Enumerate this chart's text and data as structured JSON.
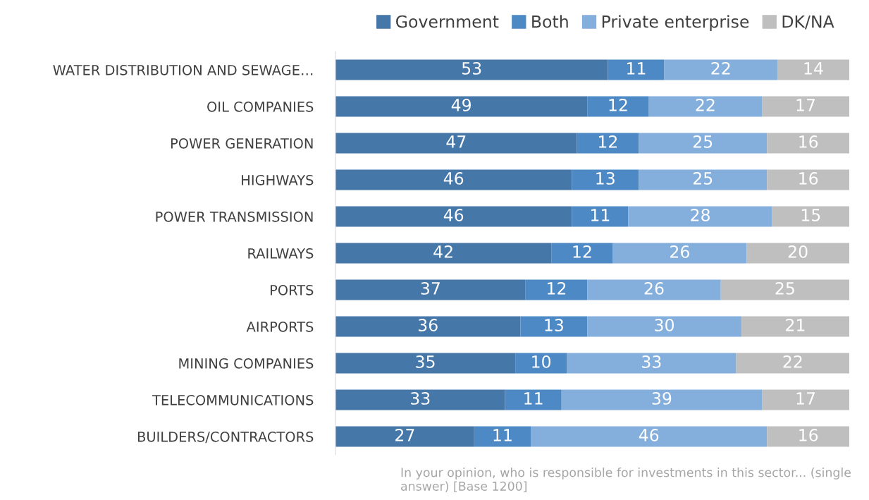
{
  "chart_data": {
    "type": "bar",
    "orientation": "horizontal",
    "stacked": true,
    "data_labels": true,
    "legend": "top right",
    "grid": false,
    "tick_labels": "y",
    "categories": [
      "WATER DISTRIBUTION AND SEWAGE…",
      "OIL COMPANIES",
      "POWER GENERATION",
      "HIGHWAYS",
      "POWER TRANSMISSION",
      "RAILWAYS",
      "PORTS",
      "AIRPORTS",
      "MINING COMPANIES",
      "TELECOMMUNICATIONS",
      "BUILDERS/CONTRACTORS"
    ],
    "xlim": [
      0,
      100
    ],
    "series": [
      {
        "name": "Government",
        "color": "#4677a9",
        "values": [
          53,
          49,
          47,
          46,
          46,
          42,
          37,
          36,
          35,
          33,
          27
        ]
      },
      {
        "name": "Both",
        "color": "#4d89c5",
        "values": [
          11,
          12,
          12,
          13,
          11,
          12,
          12,
          13,
          10,
          11,
          11
        ]
      },
      {
        "name": "Private enterprise",
        "color": "#84afdc",
        "values": [
          22,
          22,
          25,
          25,
          28,
          26,
          26,
          30,
          33,
          39,
          46
        ]
      },
      {
        "name": "DK/NA",
        "color": "#bfbfbf",
        "values": [
          14,
          17,
          16,
          16,
          15,
          20,
          25,
          21,
          22,
          17,
          16
        ]
      }
    ],
    "annotations": [
      "In your opinion, who is responsible for investments in this sector... (single answer) [Base 1200]"
    ]
  }
}
